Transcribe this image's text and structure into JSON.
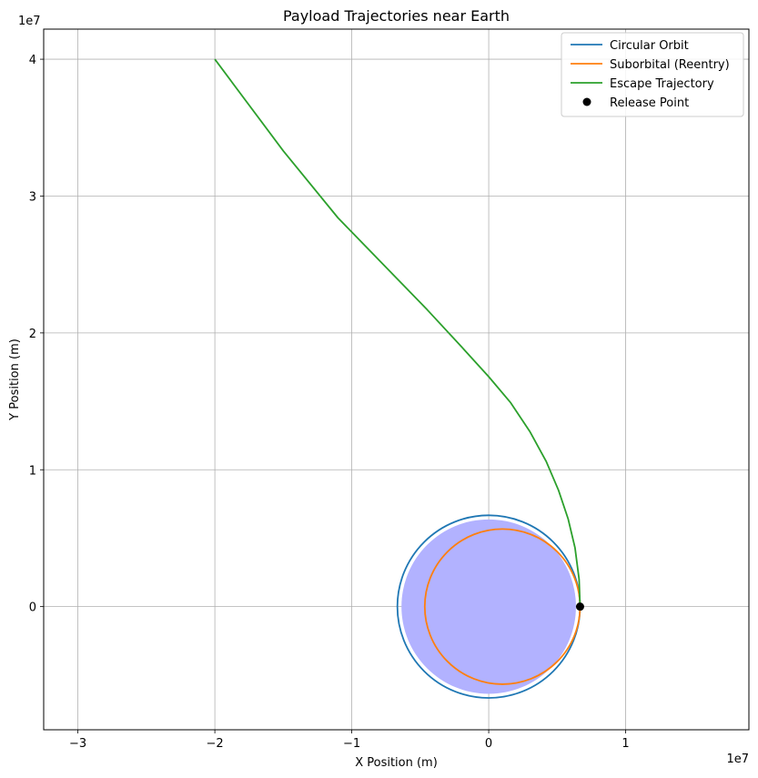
{
  "chart_data": {
    "type": "line",
    "title": "Payload Trajectories near Earth",
    "xlabel": "X Position (m)",
    "ylabel": "Y Position (m)",
    "x_offset_text": "1e7",
    "y_offset_text": "1e7",
    "xlim": [
      -32500000.0,
      19000000.0
    ],
    "ylim": [
      -9000000.0,
      42200000.0
    ],
    "x_ticks": [
      {
        "value": -30000000.0,
        "label": "−3"
      },
      {
        "value": -20000000.0,
        "label": "−2"
      },
      {
        "value": -10000000.0,
        "label": "−1"
      },
      {
        "value": 0,
        "label": "0"
      },
      {
        "value": 10000000.0,
        "label": "1"
      }
    ],
    "y_ticks": [
      {
        "value": 0,
        "label": "0"
      },
      {
        "value": 10000000.0,
        "label": "1"
      },
      {
        "value": 20000000.0,
        "label": "2"
      },
      {
        "value": 30000000.0,
        "label": "3"
      },
      {
        "value": 40000000.0,
        "label": "4"
      }
    ],
    "grid": true,
    "legend_position": "top-right",
    "earth": {
      "center": [
        0,
        0
      ],
      "radius": 6371000.0,
      "color": "#b2b2ff"
    },
    "series": [
      {
        "name": "Circular Orbit",
        "color": "#1f77b4",
        "kind": "circle",
        "center": [
          0,
          0
        ],
        "radius": 6671000.0
      },
      {
        "name": "Suborbital (Reentry)",
        "color": "#ff7f0e",
        "kind": "circle",
        "center": [
          1000000.0,
          0
        ],
        "radius": 5670000.0
      },
      {
        "name": "Escape Trajectory",
        "color": "#2ca02c",
        "kind": "line",
        "x": [
          6671000.0,
          6600000.0,
          6300000.0,
          5800000.0,
          5100000.0,
          4200000.0,
          3000000.0,
          1600000.0,
          0,
          -2000000.0,
          -4500000.0,
          -7500000.0,
          -11000000.0,
          -15000000.0,
          -20000000.0
        ],
        "y": [
          0,
          2000000.0,
          4300000.0,
          6400000.0,
          8500000.0,
          10600000.0,
          12800000.0,
          14900000.0,
          16800000.0,
          19000000.0,
          21700000.0,
          24800000.0,
          28400000.0,
          33300000.0,
          40000000.0
        ]
      },
      {
        "name": "Release Point",
        "color": "#000000",
        "kind": "point",
        "x": [
          6671000.0
        ],
        "y": [
          0
        ]
      }
    ]
  }
}
